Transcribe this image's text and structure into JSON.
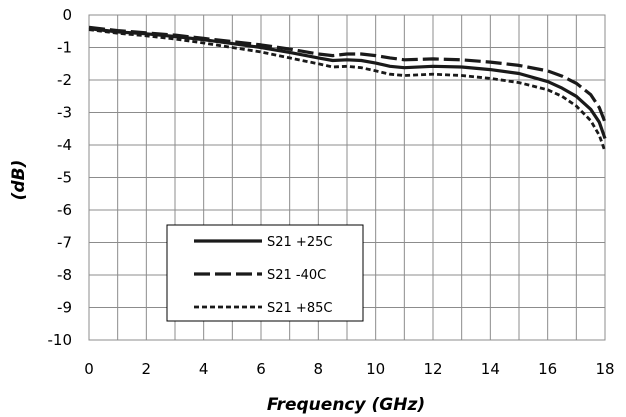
{
  "chart_data": {
    "type": "line",
    "title": "",
    "xlabel": "Frequency (GHz)",
    "ylabel": "(dB)",
    "xlim": [
      0,
      18
    ],
    "ylim": [
      -10,
      0
    ],
    "xticks": [
      "0",
      "2",
      "4",
      "6",
      "8",
      "10",
      "12",
      "14",
      "16",
      "18"
    ],
    "yticks": [
      "0",
      "-1",
      "-2",
      "-3",
      "-4",
      "-5",
      "-6",
      "-7",
      "-8",
      "-9",
      "-10"
    ],
    "grid": true,
    "legend_position": "lower-left",
    "series": [
      {
        "name": "S21 +25C",
        "style": "solid",
        "x": [
          0,
          1,
          2,
          3,
          4,
          5,
          6,
          7,
          8,
          8.5,
          9,
          9.5,
          10,
          10.5,
          11,
          12,
          13,
          14,
          15,
          16,
          16.5,
          17,
          17.5,
          17.8,
          18
        ],
        "y": [
          -0.42,
          -0.52,
          -0.58,
          -0.66,
          -0.76,
          -0.88,
          -1.0,
          -1.15,
          -1.32,
          -1.4,
          -1.38,
          -1.4,
          -1.48,
          -1.58,
          -1.62,
          -1.58,
          -1.6,
          -1.68,
          -1.8,
          -2.05,
          -2.25,
          -2.5,
          -2.9,
          -3.3,
          -3.8
        ]
      },
      {
        "name": "S21 -40C",
        "style": "dashed",
        "x": [
          0,
          1,
          2,
          3,
          4,
          5,
          6,
          7,
          8,
          8.5,
          9,
          9.5,
          10,
          10.5,
          11,
          12,
          13,
          14,
          15,
          16,
          16.5,
          17,
          17.5,
          17.8,
          18
        ],
        "y": [
          -0.38,
          -0.48,
          -0.55,
          -0.62,
          -0.72,
          -0.82,
          -0.92,
          -1.05,
          -1.2,
          -1.25,
          -1.2,
          -1.2,
          -1.25,
          -1.32,
          -1.38,
          -1.35,
          -1.38,
          -1.45,
          -1.55,
          -1.72,
          -1.88,
          -2.1,
          -2.45,
          -2.85,
          -3.3
        ]
      },
      {
        "name": "S21 +85C",
        "style": "dotted",
        "x": [
          0,
          1,
          2,
          3,
          4,
          5,
          6,
          7,
          8,
          8.5,
          9,
          9.5,
          10,
          10.5,
          11,
          12,
          13,
          14,
          15,
          16,
          16.5,
          17,
          17.5,
          17.8,
          18
        ],
        "y": [
          -0.45,
          -0.56,
          -0.64,
          -0.74,
          -0.86,
          -1.0,
          -1.14,
          -1.32,
          -1.5,
          -1.6,
          -1.58,
          -1.62,
          -1.72,
          -1.82,
          -1.86,
          -1.82,
          -1.86,
          -1.95,
          -2.08,
          -2.3,
          -2.5,
          -2.8,
          -3.25,
          -3.7,
          -4.2
        ]
      }
    ]
  }
}
